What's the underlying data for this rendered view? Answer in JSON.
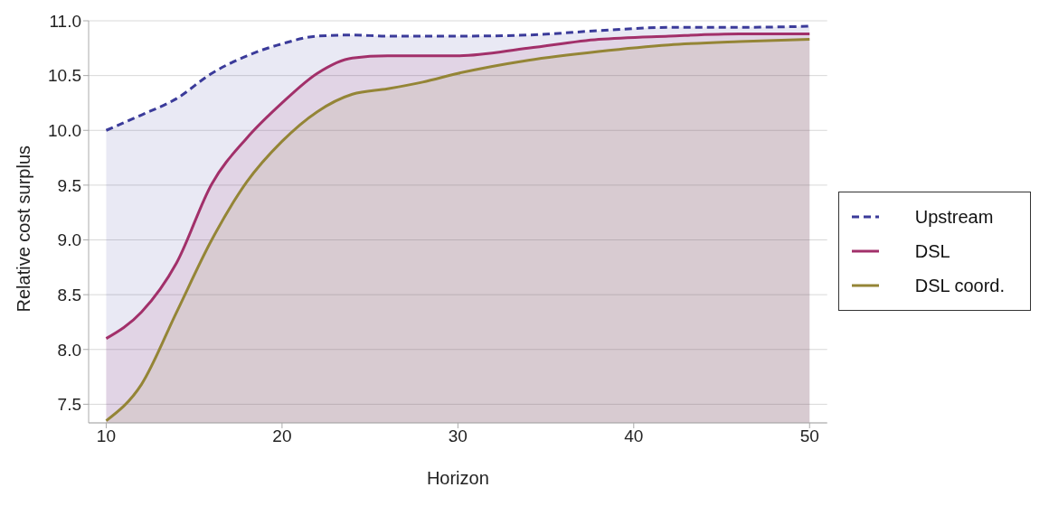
{
  "chart_data": {
    "type": "area",
    "xlabel": "Horizon",
    "ylabel": "Relative cost surplus",
    "x": [
      10,
      12,
      14,
      16,
      18,
      20,
      22,
      24,
      26,
      28,
      30,
      34,
      38,
      42,
      46,
      50
    ],
    "series": [
      {
        "name": "Upstream",
        "color": "#3b3b9a",
        "line_style": "dashed",
        "values": [
          10.0,
          10.14,
          10.29,
          10.52,
          10.68,
          10.79,
          10.86,
          10.87,
          10.86,
          10.86,
          10.86,
          10.87,
          10.91,
          10.94,
          10.94,
          10.95
        ]
      },
      {
        "name": "DSL",
        "color": "#a2306a",
        "line_style": "solid",
        "values": [
          8.1,
          8.34,
          8.79,
          9.51,
          9.93,
          10.25,
          10.52,
          10.66,
          10.68,
          10.68,
          10.68,
          10.75,
          10.83,
          10.86,
          10.88,
          10.88
        ]
      },
      {
        "name": "DSL coord.",
        "color": "#948536",
        "line_style": "solid",
        "values": [
          7.35,
          7.68,
          8.34,
          9.0,
          9.53,
          9.9,
          10.17,
          10.33,
          10.38,
          10.44,
          10.52,
          10.64,
          10.72,
          10.78,
          10.81,
          10.83
        ]
      }
    ],
    "xlim": [
      9,
      51
    ],
    "xticks": [
      10,
      20,
      30,
      40,
      50
    ],
    "ylim": [
      7.33,
      11.0
    ],
    "yticks": [
      7.5,
      {
        "value": 8,
        "label": "8.0"
      },
      8.5,
      {
        "value": 9,
        "label": "9.0"
      },
      9.5,
      {
        "value": 10,
        "label": "10.0"
      },
      10.5,
      {
        "value": 11,
        "label": "11.0"
      }
    ],
    "grid": "y",
    "legend": "right",
    "marker": "none"
  }
}
